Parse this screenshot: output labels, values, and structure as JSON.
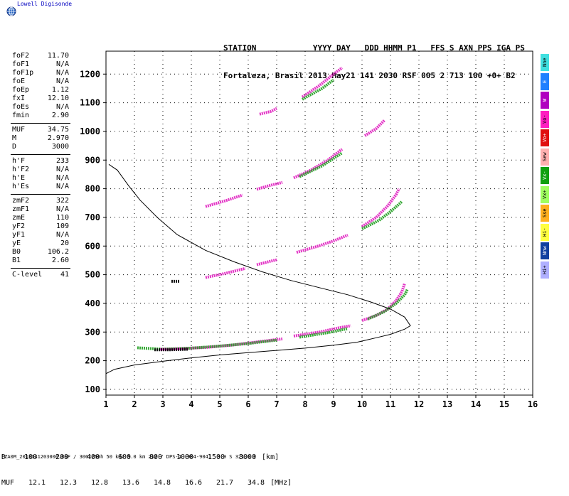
{
  "logo": {
    "text": "Lowell Digisonde"
  },
  "header": {
    "line1": "STATION            YYYY DAY   DDD HHMM P1   FFS S AXN PPS IGA PS",
    "line2": "Fortaleza, Brasil 2013 May21 141 2030 RSF 005 2 713 100 +0+ B2"
  },
  "scaled_params": [
    {
      "group": [
        {
          "name": "foF2",
          "value": "11.70"
        },
        {
          "name": "foF1",
          "value": "N/A"
        },
        {
          "name": "foF1p",
          "value": "N/A"
        },
        {
          "name": "foE",
          "value": "N/A"
        },
        {
          "name": "foEp",
          "value": "1.12"
        },
        {
          "name": "fxI",
          "value": "12.10"
        },
        {
          "name": "foEs",
          "value": "N/A"
        },
        {
          "name": "fmin",
          "value": "2.90"
        }
      ]
    },
    {
      "group": [
        {
          "name": "MUF",
          "value": "34.75"
        },
        {
          "name": "M",
          "value": "2.970"
        },
        {
          "name": "D",
          "value": "3000"
        }
      ]
    },
    {
      "group": [
        {
          "name": "h'F",
          "value": "233"
        },
        {
          "name": "h'F2",
          "value": "N/A"
        },
        {
          "name": "h'E",
          "value": "N/A"
        },
        {
          "name": "h'Es",
          "value": "N/A"
        }
      ]
    },
    {
      "group": [
        {
          "name": "zmF2",
          "value": "322"
        },
        {
          "name": "zmF1",
          "value": "N/A"
        },
        {
          "name": "zmE",
          "value": "110"
        },
        {
          "name": "yF2",
          "value": "109"
        },
        {
          "name": "yF1",
          "value": "N/A"
        },
        {
          "name": "yE",
          "value": "20"
        },
        {
          "name": "B0",
          "value": "106.2"
        },
        {
          "name": "B1",
          "value": "2.60"
        }
      ]
    },
    {
      "group": [
        {
          "name": "C-level",
          "value": "41"
        }
      ]
    }
  ],
  "legend": [
    {
      "label": "Nne",
      "color": "#40e0e0"
    },
    {
      "label": "E",
      "color": "#2080ff"
    },
    {
      "label": "W",
      "color": "#b000c0"
    },
    {
      "label": "Vo-",
      "color": "#ff20c0"
    },
    {
      "label": "Vo+",
      "color": "#e01010"
    },
    {
      "label": "Sew",
      "color": "#ffb0b0"
    },
    {
      "label": "Vx-",
      "color": "#10a010"
    },
    {
      "label": "Vx+",
      "color": "#a0ff60"
    },
    {
      "label": "Sse",
      "color": "#ffb020"
    },
    {
      "label": "Hi-",
      "color": "#ffff40"
    },
    {
      "label": "Nnw",
      "color": "#1040a0"
    },
    {
      "label": "Hi+",
      "color": "#b0b0ff"
    }
  ],
  "muf_table": {
    "d_label": "D",
    "d_values": [
      "100",
      "200",
      "400",
      "600",
      "800",
      "1000",
      "1500",
      "3000"
    ],
    "d_unit": "[km]",
    "muf_label": "MUF",
    "muf_values": [
      "12.1",
      "12.3",
      "12.8",
      "13.6",
      "14.8",
      "16.6",
      "21.7",
      "34.8"
    ],
    "muf_unit": "[MHz]"
  },
  "footer": "FZA0M_2013141203000.RSF / 300x256h 50 kHz 5.0 km 2x2 / DPS-4 (904-904)  3.9 S 321.6 E",
  "chart_data": {
    "type": "scatter",
    "xlim": [
      1,
      16
    ],
    "ylim": [
      80,
      1280
    ],
    "xticks": [
      1,
      2,
      3,
      4,
      5,
      6,
      7,
      8,
      9,
      10,
      11,
      12,
      13,
      14,
      15,
      16
    ],
    "yticks": [
      100,
      200,
      300,
      400,
      500,
      600,
      700,
      800,
      900,
      1000,
      1100,
      1200
    ],
    "grid": true,
    "traces": [
      {
        "color": "#e020c0",
        "points": [
          [
            2.9,
            240
          ],
          [
            3.5,
            242
          ],
          [
            4.5,
            246
          ],
          [
            5.5,
            255
          ],
          [
            6.5,
            268
          ],
          [
            7.2,
            276
          ]
        ]
      },
      {
        "color": "#e020c0",
        "points": [
          [
            7.6,
            286
          ],
          [
            8.5,
            300
          ],
          [
            9.2,
            315
          ],
          [
            9.6,
            322
          ]
        ]
      },
      {
        "color": "#e020c0",
        "points": [
          [
            10.0,
            340
          ],
          [
            10.5,
            358
          ],
          [
            10.9,
            380
          ],
          [
            11.2,
            410
          ],
          [
            11.4,
            440
          ],
          [
            11.5,
            470
          ]
        ]
      },
      {
        "color": "#e020c0",
        "points": [
          [
            4.5,
            490
          ],
          [
            5.2,
            505
          ],
          [
            5.9,
            522
          ]
        ]
      },
      {
        "color": "#e020c0",
        "points": [
          [
            6.3,
            535
          ],
          [
            6.7,
            545
          ],
          [
            7.0,
            552
          ]
        ]
      },
      {
        "color": "#e020c0",
        "points": [
          [
            7.7,
            578
          ],
          [
            8.4,
            598
          ],
          [
            9.0,
            618
          ],
          [
            9.5,
            638
          ]
        ]
      },
      {
        "color": "#e020c0",
        "points": [
          [
            10.0,
            668
          ],
          [
            10.5,
            700
          ],
          [
            10.9,
            740
          ],
          [
            11.2,
            780
          ],
          [
            11.3,
            800
          ]
        ]
      },
      {
        "color": "#e020c0",
        "points": [
          [
            4.5,
            738
          ],
          [
            5.2,
            758
          ],
          [
            5.8,
            778
          ]
        ]
      },
      {
        "color": "#e020c0",
        "points": [
          [
            6.3,
            798
          ],
          [
            6.7,
            810
          ],
          [
            7.2,
            822
          ]
        ]
      },
      {
        "color": "#e020c0",
        "points": [
          [
            7.6,
            838
          ],
          [
            8.2,
            865
          ],
          [
            8.8,
            900
          ],
          [
            9.3,
            938
          ]
        ]
      },
      {
        "color": "#e020c0",
        "points": [
          [
            6.4,
            1060
          ],
          [
            6.8,
            1070
          ],
          [
            7.0,
            1080
          ]
        ]
      },
      {
        "color": "#e020c0",
        "points": [
          [
            7.9,
            1120
          ],
          [
            8.5,
            1160
          ],
          [
            9.0,
            1200
          ],
          [
            9.3,
            1222
          ]
        ]
      },
      {
        "color": "#e020c0",
        "points": [
          [
            10.1,
            985
          ],
          [
            10.5,
            1010
          ],
          [
            10.8,
            1040
          ]
        ]
      },
      {
        "color": "#20a020",
        "points": [
          [
            2.1,
            245
          ],
          [
            3.0,
            240
          ],
          [
            4.0,
            244
          ],
          [
            5.0,
            251
          ],
          [
            6.0,
            260
          ],
          [
            7.0,
            272
          ]
        ]
      },
      {
        "color": "#20a020",
        "points": [
          [
            7.8,
            282
          ],
          [
            8.8,
            298
          ],
          [
            9.5,
            312
          ]
        ]
      },
      {
        "color": "#20a020",
        "points": [
          [
            10.2,
            345
          ],
          [
            10.8,
            372
          ],
          [
            11.2,
            400
          ],
          [
            11.5,
            430
          ],
          [
            11.6,
            450
          ]
        ]
      },
      {
        "color": "#20a020",
        "points": [
          [
            10.0,
            660
          ],
          [
            10.6,
            690
          ],
          [
            11.0,
            720
          ],
          [
            11.4,
            755
          ]
        ]
      },
      {
        "color": "#20a020",
        "points": [
          [
            7.8,
            842
          ],
          [
            8.6,
            880
          ],
          [
            9.3,
            925
          ]
        ]
      },
      {
        "color": "#20a020",
        "points": [
          [
            7.9,
            1112
          ],
          [
            8.6,
            1150
          ],
          [
            9.0,
            1180
          ]
        ]
      },
      {
        "color": "#000000",
        "points": [
          [
            2.7,
            238
          ],
          [
            3.2,
            238
          ],
          [
            3.9,
            240
          ]
        ]
      },
      {
        "color": "#000000",
        "points": [
          [
            3.3,
            477
          ],
          [
            3.6,
            477
          ]
        ]
      }
    ],
    "profile": {
      "color": "#000000",
      "points": [
        [
          1.0,
          155
        ],
        [
          1.3,
          170
        ],
        [
          2.0,
          185
        ],
        [
          3.0,
          198
        ],
        [
          4.0,
          210
        ],
        [
          5.0,
          220
        ],
        [
          6.0,
          228
        ],
        [
          7.0,
          236
        ],
        [
          8.0,
          244
        ],
        [
          9.0,
          254
        ],
        [
          9.8,
          264
        ],
        [
          10.5,
          280
        ],
        [
          11.0,
          292
        ],
        [
          11.5,
          310
        ],
        [
          11.7,
          322
        ],
        [
          11.5,
          352
        ],
        [
          11.0,
          380
        ],
        [
          10.3,
          405
        ],
        [
          9.5,
          430
        ],
        [
          8.5,
          455
        ],
        [
          7.5,
          480
        ],
        [
          6.5,
          510
        ],
        [
          5.5,
          545
        ],
        [
          4.5,
          585
        ],
        [
          3.5,
          640
        ],
        [
          2.8,
          700
        ],
        [
          2.2,
          760
        ],
        [
          1.8,
          810
        ],
        [
          1.4,
          865
        ],
        [
          1.1,
          885
        ]
      ]
    }
  }
}
